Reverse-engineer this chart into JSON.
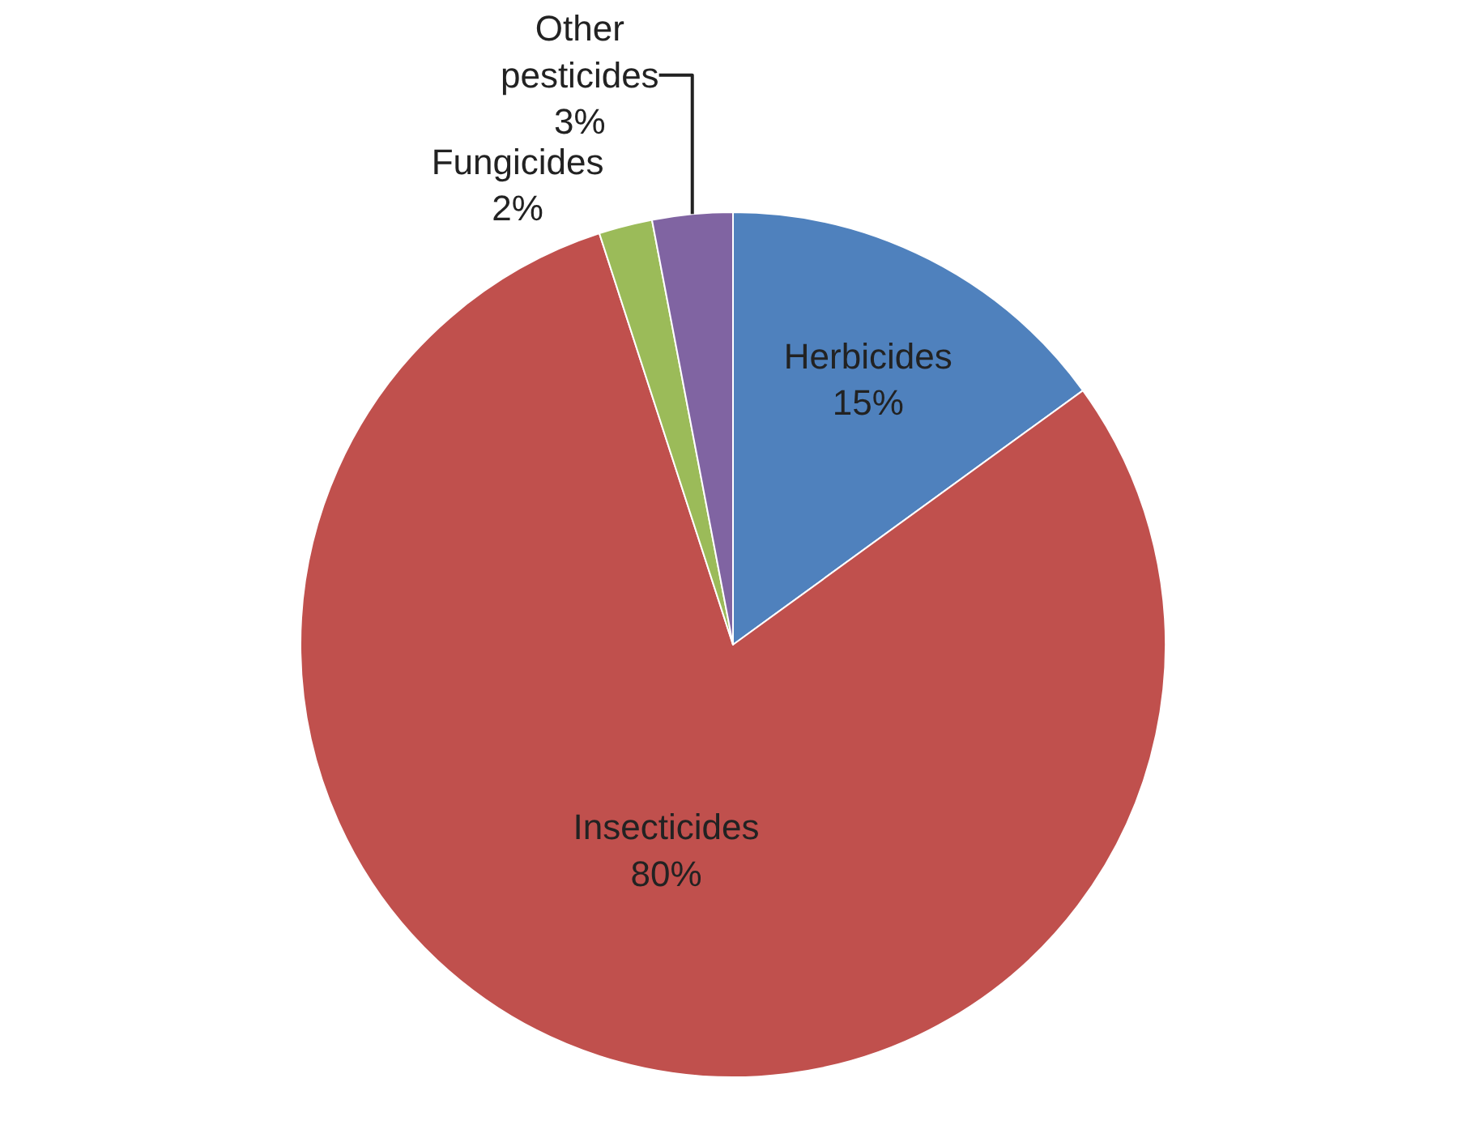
{
  "chart_data": {
    "type": "pie",
    "categories": [
      "Herbicides",
      "Insecticides",
      "Fungicides",
      "Other pesticides"
    ],
    "values": [
      15,
      80,
      2,
      3
    ],
    "value_labels": [
      "15%",
      "80%",
      "2%",
      "3%"
    ],
    "colors": [
      "#4f81bd",
      "#c0504d",
      "#9bbb59",
      "#8064a2"
    ],
    "legend": false
  }
}
